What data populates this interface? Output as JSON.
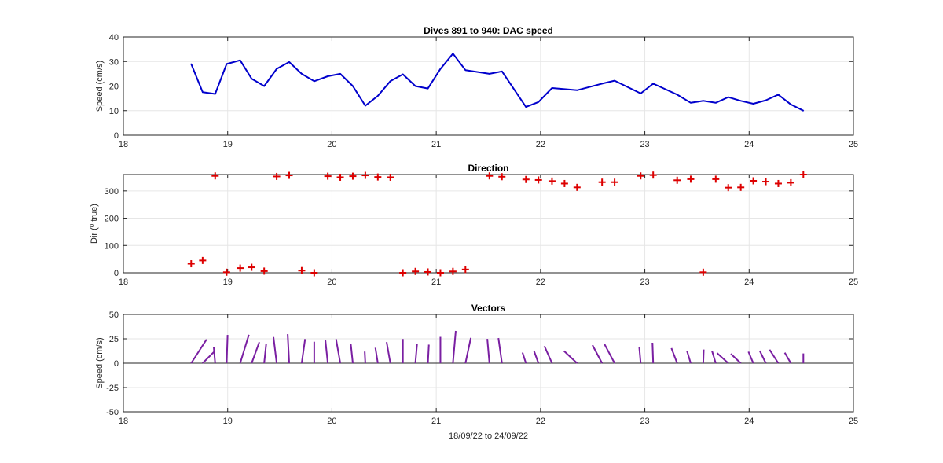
{
  "chart_data": [
    {
      "type": "line",
      "title": "Dives 891 to 940: DAC speed",
      "ylabel": "Speed (cm/s)",
      "xlabel": "",
      "xlim": [
        18,
        25
      ],
      "ylim": [
        0,
        40
      ],
      "xticks": [
        "18",
        "19",
        "20",
        "21",
        "22",
        "23",
        "24",
        "25"
      ],
      "yticks": [
        "0",
        "10",
        "20",
        "30",
        "40"
      ],
      "grid": true,
      "color": "#0000cc",
      "series": [
        {
          "x": [
            18.65,
            18.76,
            18.88,
            18.99,
            19.12,
            19.23,
            19.35,
            19.47,
            19.59,
            19.71,
            19.83,
            19.96,
            20.08,
            20.2,
            20.32,
            20.44,
            20.56,
            20.68,
            20.8,
            20.92,
            21.04,
            21.16,
            21.28,
            21.51,
            21.63,
            21.86,
            21.98,
            22.11,
            22.35,
            22.59,
            22.71,
            22.96,
            23.08,
            23.31,
            23.44,
            23.56,
            23.68,
            23.8,
            23.92,
            24.04,
            24.16,
            24.28,
            24.4,
            24.52
          ],
          "y": [
            29,
            17.5,
            16.8,
            29,
            30.5,
            23,
            20,
            27,
            29.8,
            25,
            22,
            24,
            25,
            20,
            12,
            16,
            22,
            24.8,
            20,
            19,
            27,
            33.2,
            26.5,
            25,
            26,
            11.5,
            13.5,
            19.2,
            18.3,
            21,
            22.2,
            17,
            21,
            16.5,
            13.2,
            14,
            13.2,
            15.5,
            14,
            12.8,
            14.2,
            16.5,
            12.5,
            10
          ]
        }
      ]
    },
    {
      "type": "scatter",
      "title": "Direction",
      "ylabel": "Dir (° true)",
      "ylabel_parts": [
        "Dir (",
        "o",
        " true)"
      ],
      "xlabel": "",
      "xlim": [
        18,
        25
      ],
      "ylim": [
        0,
        360
      ],
      "xticks": [
        "18",
        "19",
        "20",
        "21",
        "22",
        "23",
        "24",
        "25"
      ],
      "yticks": [
        "0",
        "100",
        "200",
        "300"
      ],
      "grid": true,
      "marker": "+",
      "color": "#dd0000",
      "series": [
        {
          "x": [
            18.65,
            18.76,
            18.88,
            18.99,
            19.12,
            19.23,
            19.35,
            19.47,
            19.59,
            19.71,
            19.83,
            19.96,
            20.08,
            20.2,
            20.32,
            20.44,
            20.56,
            20.68,
            20.8,
            20.92,
            21.04,
            21.16,
            21.28,
            21.51,
            21.63,
            21.86,
            21.98,
            22.11,
            22.23,
            22.35,
            22.59,
            22.71,
            22.96,
            23.08,
            23.31,
            23.44,
            23.56,
            23.68,
            23.8,
            23.92,
            24.04,
            24.16,
            24.28,
            24.4,
            24.52
          ],
          "y": [
            33,
            45,
            355,
            2,
            17,
            20,
            6,
            353,
            357,
            8,
            0,
            354,
            350,
            354,
            357,
            351,
            350,
            0,
            5,
            3,
            0,
            5,
            12,
            355,
            352,
            342,
            340,
            336,
            327,
            313,
            332,
            332,
            355,
            358,
            339,
            343,
            2,
            343,
            312,
            313,
            337,
            334,
            327,
            330,
            360
          ]
        }
      ]
    },
    {
      "type": "vector",
      "title": "Vectors",
      "ylabel": "Speed (cm/s)",
      "xlabel": "18/09/22 to 24/09/22",
      "xlim": [
        18,
        25
      ],
      "ylim": [
        -50,
        50
      ],
      "xticks": [
        "18",
        "19",
        "20",
        "21",
        "22",
        "23",
        "24",
        "25"
      ],
      "yticks": [
        "-50",
        "-25",
        "0",
        "25",
        "50"
      ],
      "grid": true,
      "color": "#7a1fa2",
      "note_units": "vectors drawn from (time, 0) using speed and direction from the panels above"
    }
  ]
}
